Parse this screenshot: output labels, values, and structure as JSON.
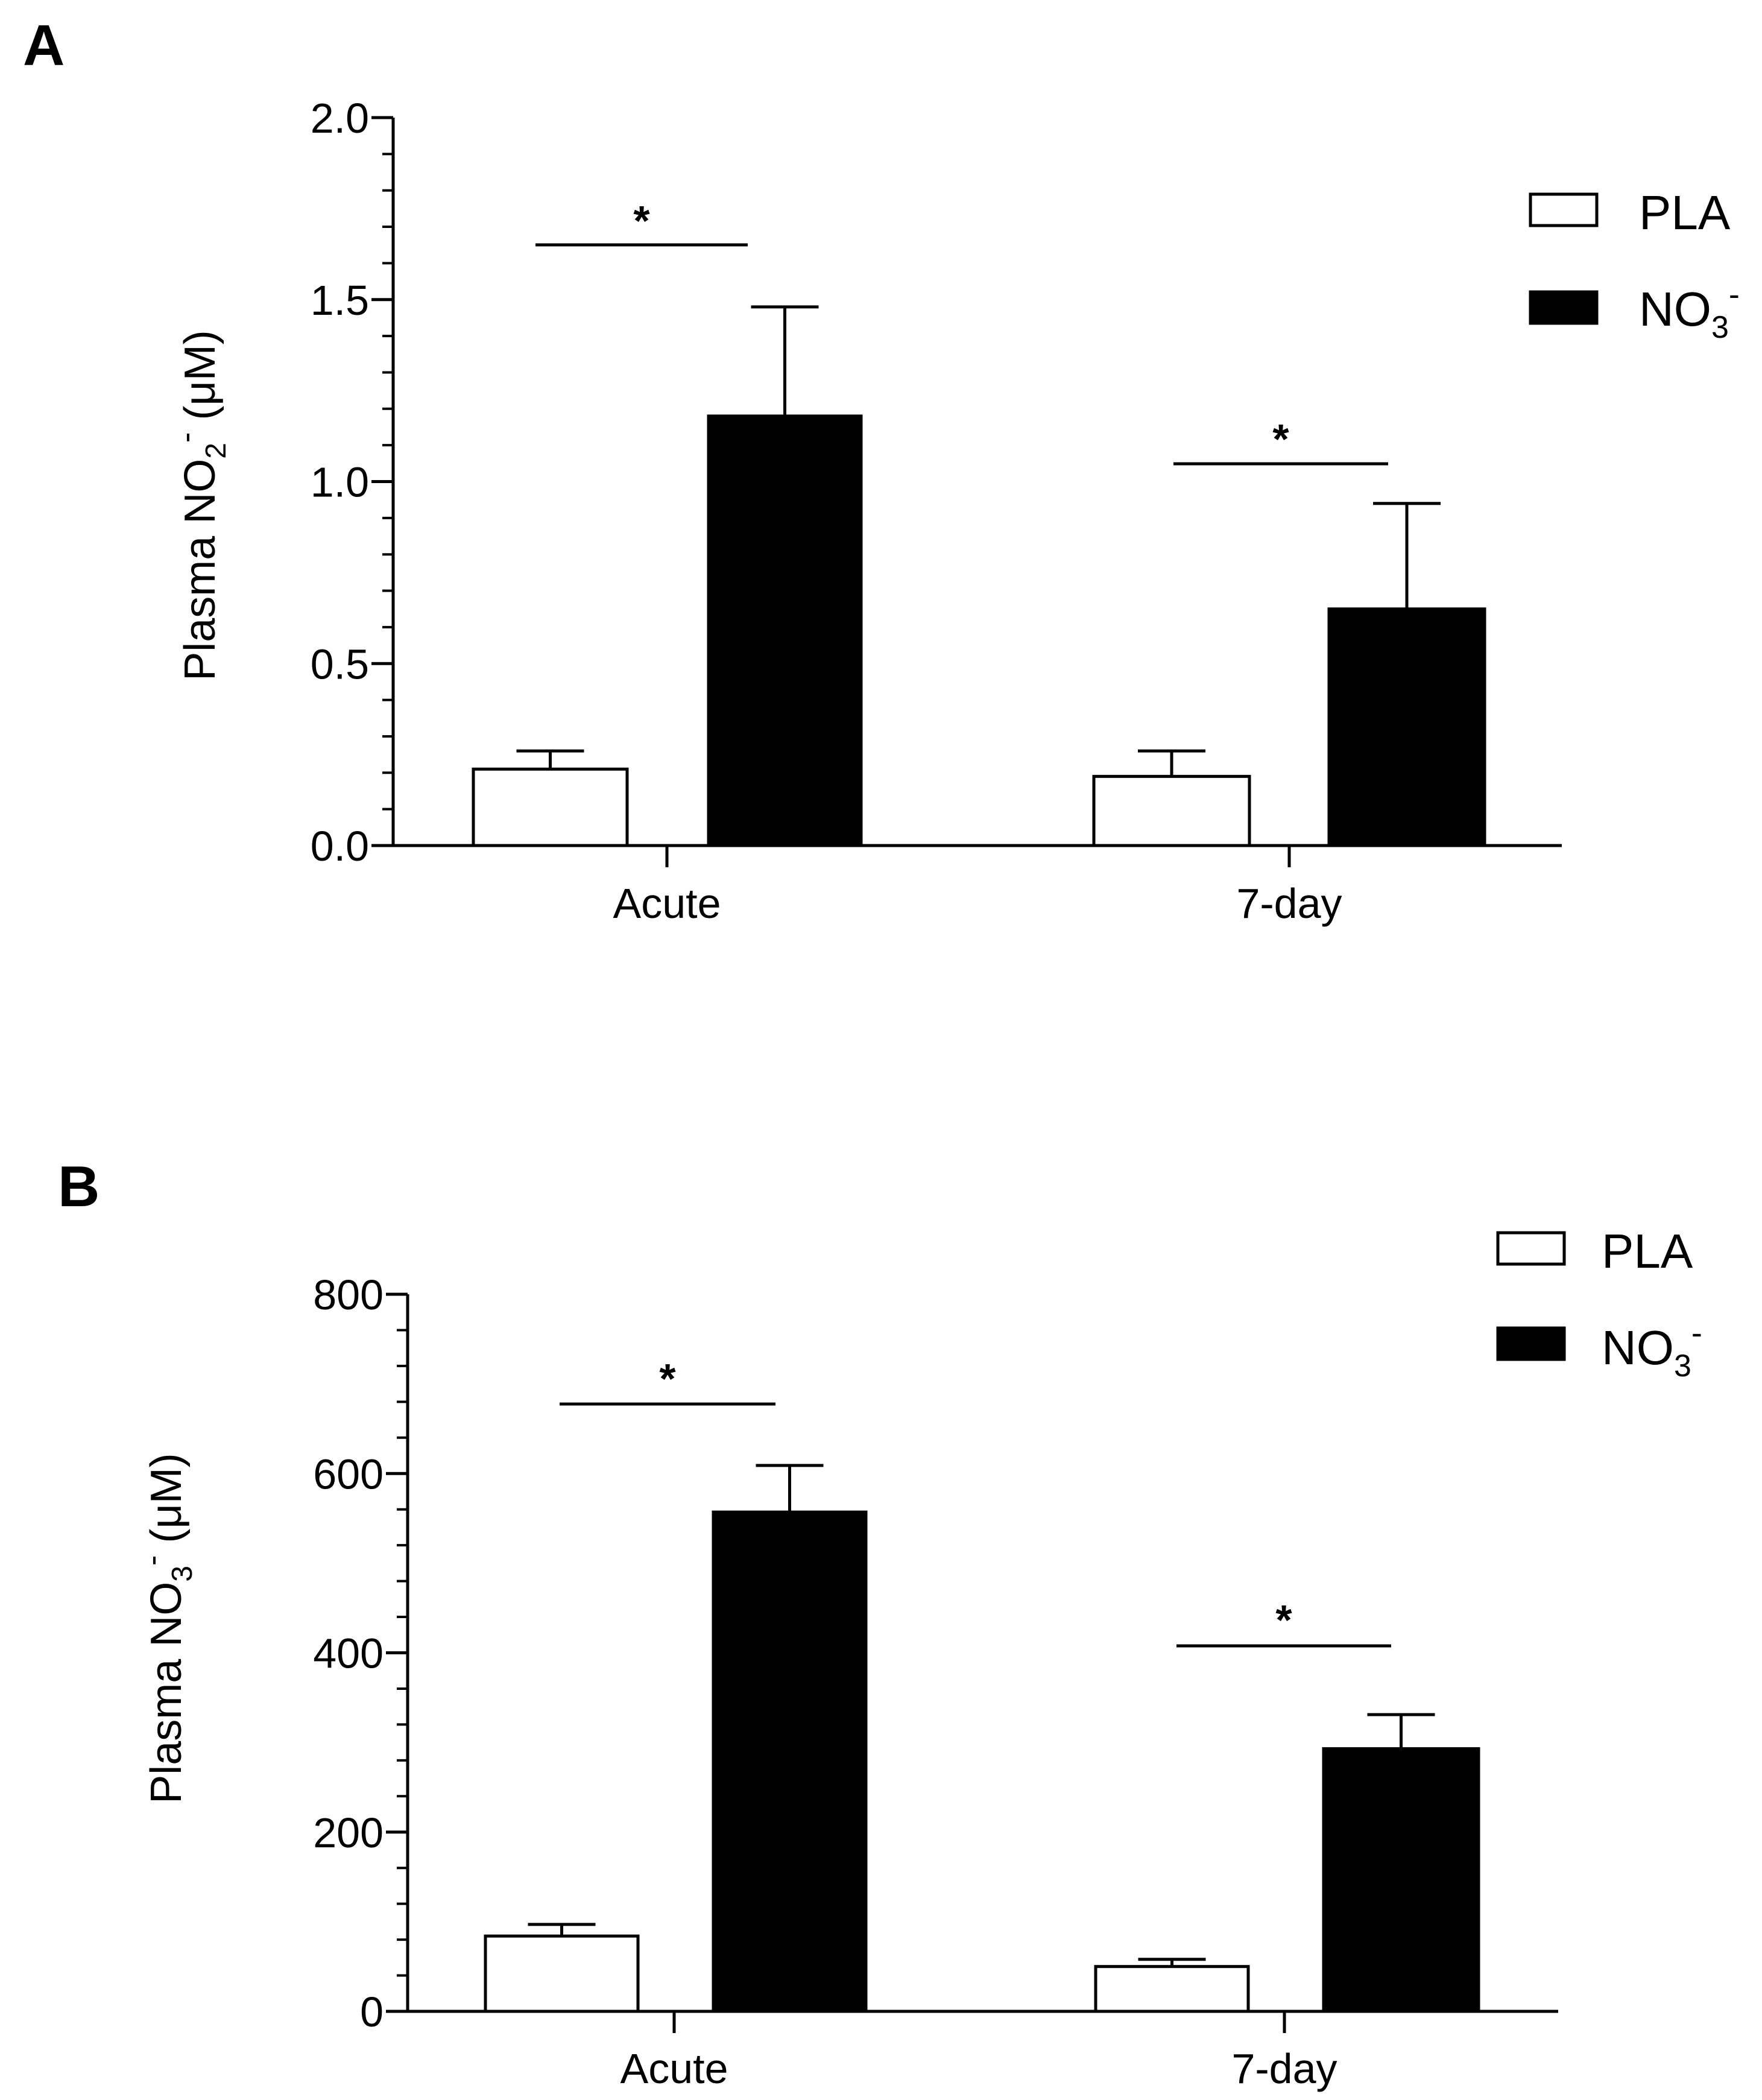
{
  "chart_data": [
    {
      "panel": "A",
      "type": "bar",
      "categories": [
        "Acute",
        "7-day"
      ],
      "series": [
        {
          "name": "PLA",
          "values": [
            0.21,
            0.19
          ],
          "errors": [
            0.05,
            0.07
          ],
          "fill": "#ffffff"
        },
        {
          "name": "NO3-",
          "values": [
            1.18,
            0.65
          ],
          "errors": [
            0.3,
            0.29
          ],
          "fill": "#000000"
        }
      ],
      "ylabel": {
        "prefix": "Plasma NO",
        "sub": "2",
        "sup": "-",
        "suffix": " (μM)"
      },
      "ylim": [
        0,
        2.0
      ],
      "yticks": [
        0,
        0.5,
        1.0,
        1.5,
        2.0
      ],
      "ytick_labels": [
        "0.0",
        "0.5",
        "1.0",
        "1.5",
        "2.0"
      ],
      "minor_per_major": 5,
      "significance": [
        {
          "category": "Acute",
          "mark": "*"
        },
        {
          "category": "7-day",
          "mark": "*"
        }
      ],
      "legend": {
        "position": "top-right",
        "items": [
          {
            "label": "PLA",
            "sub": "",
            "sup": ""
          },
          {
            "label": "NO",
            "sub": "3",
            "sup": "-"
          }
        ]
      }
    },
    {
      "panel": "B",
      "type": "bar",
      "categories": [
        "Acute",
        "7-day"
      ],
      "series": [
        {
          "name": "PLA",
          "values": [
            84,
            50
          ],
          "errors": [
            13,
            8
          ],
          "fill": "#ffffff"
        },
        {
          "name": "NO3-",
          "values": [
            557,
            293
          ],
          "errors": [
            52,
            38
          ],
          "fill": "#000000"
        }
      ],
      "ylabel": {
        "prefix": "Plasma NO",
        "sub": "3",
        "sup": "-",
        "suffix": " (μM)"
      },
      "ylim": [
        0,
        800
      ],
      "yticks": [
        0,
        200,
        400,
        600,
        800
      ],
      "ytick_labels": [
        "0",
        "200",
        "400",
        "600",
        "800"
      ],
      "minor_per_major": 5,
      "significance": [
        {
          "category": "Acute",
          "mark": "*"
        },
        {
          "category": "7-day",
          "mark": "*"
        }
      ],
      "legend": {
        "position": "top-right",
        "items": [
          {
            "label": "PLA",
            "sub": "",
            "sup": ""
          },
          {
            "label": "NO",
            "sub": "3",
            "sup": "-"
          }
        ]
      }
    }
  ]
}
